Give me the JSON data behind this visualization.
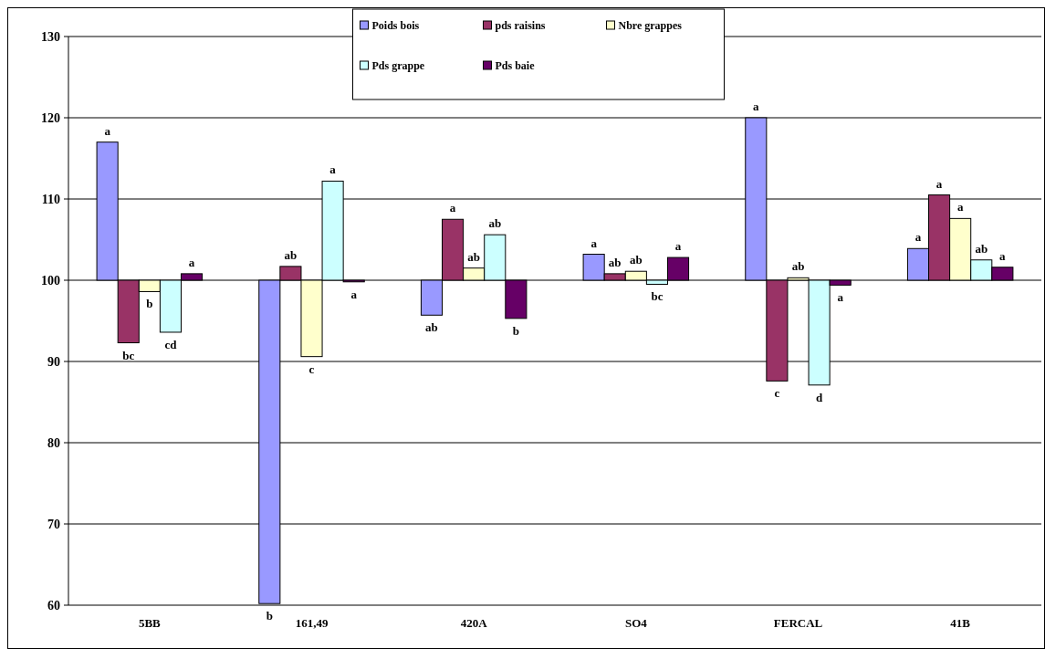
{
  "chart_data": {
    "type": "bar",
    "categories": [
      "5BB",
      "161,49",
      "420A",
      "SO4",
      "FERCAL",
      "41B"
    ],
    "series": [
      {
        "name": "Poids bois",
        "color": "#9999ff",
        "values": [
          17,
          -39.8,
          -4.3,
          3.2,
          20,
          3.9
        ],
        "base": [
          100,
          100,
          100,
          100,
          100,
          100
        ],
        "value_labels": [
          "a",
          "b",
          "ab",
          "a",
          "a",
          "a"
        ]
      },
      {
        "name": "pds raisins",
        "color": "#993366",
        "values": [
          -7.7,
          1.7,
          7.5,
          0.8,
          -12.4,
          10.5
        ],
        "base": [
          100,
          100,
          100,
          100,
          100,
          100
        ],
        "value_labels": [
          "bc",
          "ab",
          "a",
          "ab",
          "c",
          "a"
        ]
      },
      {
        "name": "Nbre grappes",
        "color": "#ffffcc",
        "values": [
          -1.4,
          -9.4,
          1.5,
          1.1,
          0.3,
          7.6
        ],
        "base": [
          100,
          100,
          100,
          100,
          100,
          100
        ],
        "value_labels": [
          "b",
          "c",
          "ab",
          "ab",
          "ab",
          "a"
        ]
      },
      {
        "name": "Pds grappe",
        "color": "#ccffff",
        "values": [
          -6.4,
          12.2,
          5.6,
          -0.5,
          -12.9,
          2.5
        ],
        "base": [
          100,
          100,
          100,
          100,
          100,
          100
        ],
        "value_labels": [
          "cd",
          "a",
          "ab",
          "bc",
          "d",
          "ab"
        ]
      },
      {
        "name": "Pds baie",
        "color": "#660066",
        "values": [
          0.8,
          -0.2,
          -4.7,
          2.8,
          -0.6,
          1.6
        ],
        "base": [
          100,
          100,
          100,
          100,
          100,
          100
        ],
        "value_labels": [
          "a",
          "a",
          "b",
          "a",
          "a",
          "a"
        ]
      }
    ],
    "ylim": [
      60,
      130
    ],
    "yticks": [
      60,
      70,
      80,
      90,
      100,
      110,
      120,
      130
    ],
    "grid": "y",
    "legend": "top"
  }
}
